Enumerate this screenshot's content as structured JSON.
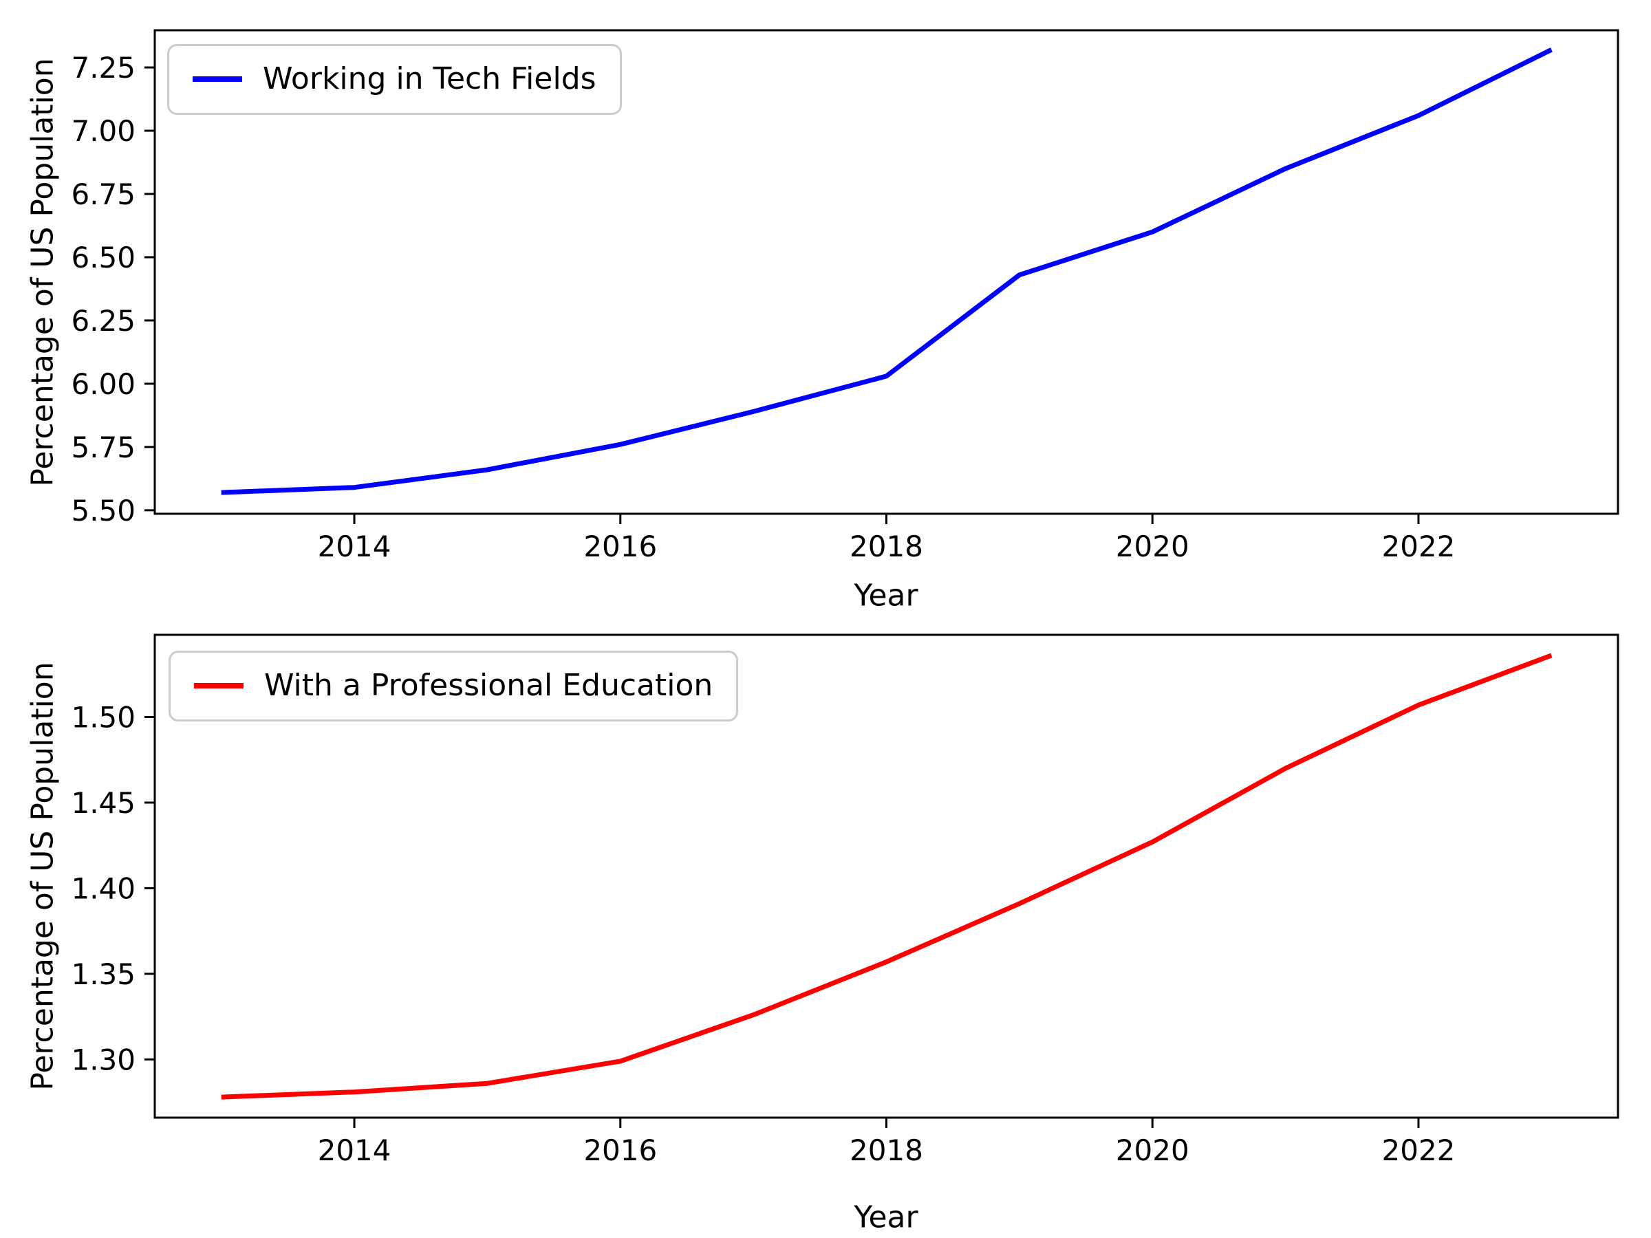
{
  "figure": {
    "background": "#ffffff",
    "text_color": "#000000",
    "spine_color": "#000000",
    "legend_border_color": "#cccccc"
  },
  "chart_data": [
    {
      "type": "line",
      "title": "",
      "xlabel": "Year",
      "ylabel": "Percentage of US Population",
      "grid": false,
      "legend_position": "upper left",
      "xlim": [
        2012.5,
        2023.5
      ],
      "ylim": [
        5.486,
        7.397
      ],
      "x": [
        2013,
        2014,
        2015,
        2016,
        2017,
        2018,
        2019,
        2020,
        2021,
        2022,
        2023
      ],
      "series": [
        {
          "name": "Working in Tech Fields",
          "color": "#0000ff",
          "values": [
            5.57,
            5.59,
            5.66,
            5.76,
            5.89,
            6.03,
            6.43,
            6.6,
            6.85,
            7.06,
            7.32
          ]
        }
      ],
      "x_ticks": [
        {
          "v": 2014,
          "label": "2014"
        },
        {
          "v": 2016,
          "label": "2016"
        },
        {
          "v": 2018,
          "label": "2018"
        },
        {
          "v": 2020,
          "label": "2020"
        },
        {
          "v": 2022,
          "label": "2022"
        }
      ],
      "y_ticks": [
        {
          "v": 5.5,
          "label": "5.50"
        },
        {
          "v": 5.75,
          "label": "5.75"
        },
        {
          "v": 6.0,
          "label": "6.00"
        },
        {
          "v": 6.25,
          "label": "6.25"
        },
        {
          "v": 6.5,
          "label": "6.50"
        },
        {
          "v": 6.75,
          "label": "6.75"
        },
        {
          "v": 7.0,
          "label": "7.00"
        },
        {
          "v": 7.25,
          "label": "7.25"
        }
      ]
    },
    {
      "type": "line",
      "title": "",
      "xlabel": "Year",
      "ylabel": "Percentage of US Population",
      "grid": false,
      "legend_position": "upper left",
      "xlim": [
        2012.5,
        2023.5
      ],
      "ylim": [
        1.266,
        1.548
      ],
      "x": [
        2013,
        2014,
        2015,
        2016,
        2017,
        2018,
        2019,
        2020,
        2021,
        2022,
        2023
      ],
      "series": [
        {
          "name": "With a Professional Education",
          "color": "#ff0000",
          "values": [
            1.278,
            1.281,
            1.286,
            1.299,
            1.326,
            1.357,
            1.391,
            1.427,
            1.47,
            1.507,
            1.536
          ]
        }
      ],
      "x_ticks": [
        {
          "v": 2014,
          "label": "2014"
        },
        {
          "v": 2016,
          "label": "2016"
        },
        {
          "v": 2018,
          "label": "2018"
        },
        {
          "v": 2020,
          "label": "2020"
        },
        {
          "v": 2022,
          "label": "2022"
        }
      ],
      "y_ticks": [
        {
          "v": 1.3,
          "label": "1.30"
        },
        {
          "v": 1.35,
          "label": "1.35"
        },
        {
          "v": 1.4,
          "label": "1.40"
        },
        {
          "v": 1.45,
          "label": "1.45"
        },
        {
          "v": 1.5,
          "label": "1.50"
        }
      ]
    }
  ]
}
